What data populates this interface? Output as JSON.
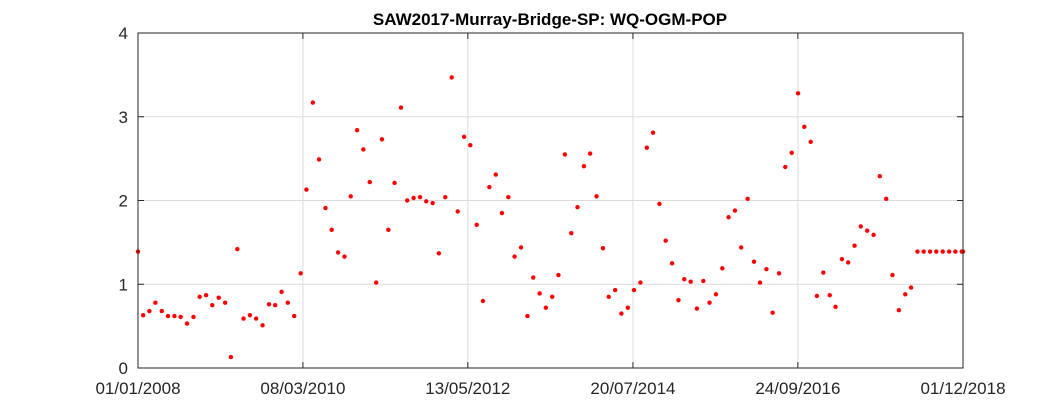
{
  "chart_data": {
    "type": "scatter",
    "title": "SAW2017-Murray-Bridge-SP: WQ-OGM-POP",
    "xlabel": "",
    "ylabel": "",
    "xlim": [
      "2008-01-01",
      "2018-12-01"
    ],
    "ylim": [
      0,
      4
    ],
    "x_ticks": [
      {
        "date": "2008-01-01",
        "label": "01/01/2008"
      },
      {
        "date": "2010-03-08",
        "label": "08/03/2010"
      },
      {
        "date": "2012-05-13",
        "label": "13/05/2012"
      },
      {
        "date": "2014-07-20",
        "label": "20/07/2014"
      },
      {
        "date": "2016-09-24",
        "label": "24/09/2016"
      },
      {
        "date": "2018-12-01",
        "label": "01/12/2018"
      }
    ],
    "y_ticks": [
      {
        "value": 0,
        "label": "0"
      },
      {
        "value": 1,
        "label": "1"
      },
      {
        "value": 2,
        "label": "2"
      },
      {
        "value": 3,
        "label": "3"
      },
      {
        "value": 4,
        "label": "4"
      }
    ],
    "grid": true,
    "legend": "none",
    "marker_color": "#ff0000",
    "series": [
      {
        "points": [
          [
            "2008-01-01",
            1.39
          ],
          [
            "2008-01-26",
            0.63
          ],
          [
            "2008-02-25",
            0.68
          ],
          [
            "2008-03-25",
            0.78
          ],
          [
            "2008-04-25",
            0.68
          ],
          [
            "2008-05-25",
            0.62
          ],
          [
            "2008-06-25",
            0.62
          ],
          [
            "2008-07-25",
            0.61
          ],
          [
            "2008-08-25",
            0.53
          ],
          [
            "2008-09-25",
            0.61
          ],
          [
            "2008-10-25",
            0.85
          ],
          [
            "2008-11-25",
            0.87
          ],
          [
            "2008-12-25",
            0.75
          ],
          [
            "2009-01-25",
            0.84
          ],
          [
            "2009-02-25",
            0.78
          ],
          [
            "2009-03-25",
            0.13
          ],
          [
            "2009-04-25",
            1.42
          ],
          [
            "2009-05-25",
            0.59
          ],
          [
            "2009-06-25",
            0.63
          ],
          [
            "2009-07-25",
            0.59
          ],
          [
            "2009-08-25",
            0.51
          ],
          [
            "2009-09-25",
            0.76
          ],
          [
            "2009-10-25",
            0.75
          ],
          [
            "2009-11-25",
            0.91
          ],
          [
            "2009-12-25",
            0.78
          ],
          [
            "2010-01-25",
            0.62
          ],
          [
            "2010-02-25",
            1.13
          ],
          [
            "2010-03-25",
            2.13
          ],
          [
            "2010-04-25",
            3.17
          ],
          [
            "2010-05-25",
            2.49
          ],
          [
            "2010-06-25",
            1.91
          ],
          [
            "2010-07-25",
            1.65
          ],
          [
            "2010-08-25",
            1.38
          ],
          [
            "2010-09-25",
            1.33
          ],
          [
            "2010-10-25",
            2.05
          ],
          [
            "2010-11-25",
            2.84
          ],
          [
            "2010-12-25",
            2.61
          ],
          [
            "2011-01-25",
            2.22
          ],
          [
            "2011-02-25",
            1.02
          ],
          [
            "2011-03-25",
            2.73
          ],
          [
            "2011-04-25",
            1.65
          ],
          [
            "2011-05-25",
            2.21
          ],
          [
            "2011-06-25",
            3.11
          ],
          [
            "2011-07-25",
            2.0
          ],
          [
            "2011-08-25",
            2.03
          ],
          [
            "2011-09-25",
            2.04
          ],
          [
            "2011-10-25",
            1.99
          ],
          [
            "2011-11-25",
            1.97
          ],
          [
            "2011-12-25",
            1.37
          ],
          [
            "2012-01-25",
            2.04
          ],
          [
            "2012-02-25",
            3.47
          ],
          [
            "2012-03-25",
            1.87
          ],
          [
            "2012-04-25",
            2.76
          ],
          [
            "2012-05-25",
            2.66
          ],
          [
            "2012-06-25",
            1.71
          ],
          [
            "2012-07-25",
            0.8
          ],
          [
            "2012-08-25",
            2.16
          ],
          [
            "2012-09-25",
            2.31
          ],
          [
            "2012-10-25",
            1.85
          ],
          [
            "2012-11-25",
            2.04
          ],
          [
            "2012-12-25",
            1.33
          ],
          [
            "2013-01-25",
            1.44
          ],
          [
            "2013-02-25",
            0.62
          ],
          [
            "2013-03-25",
            1.08
          ],
          [
            "2013-04-25",
            0.89
          ],
          [
            "2013-05-25",
            0.72
          ],
          [
            "2013-06-25",
            0.85
          ],
          [
            "2013-07-25",
            1.11
          ],
          [
            "2013-08-25",
            2.55
          ],
          [
            "2013-09-25",
            1.61
          ],
          [
            "2013-10-25",
            1.92
          ],
          [
            "2013-11-25",
            2.41
          ],
          [
            "2013-12-25",
            2.56
          ],
          [
            "2014-01-25",
            2.05
          ],
          [
            "2014-02-25",
            1.43
          ],
          [
            "2014-03-25",
            0.85
          ],
          [
            "2014-04-25",
            0.93
          ],
          [
            "2014-05-25",
            0.65
          ],
          [
            "2014-06-25",
            0.72
          ],
          [
            "2014-07-25",
            0.93
          ],
          [
            "2014-08-25",
            1.02
          ],
          [
            "2014-09-25",
            2.63
          ],
          [
            "2014-10-25",
            2.81
          ],
          [
            "2014-11-25",
            1.96
          ],
          [
            "2014-12-25",
            1.52
          ],
          [
            "2015-01-25",
            1.25
          ],
          [
            "2015-02-25",
            0.81
          ],
          [
            "2015-03-25",
            1.06
          ],
          [
            "2015-04-25",
            1.03
          ],
          [
            "2015-05-25",
            0.71
          ],
          [
            "2015-06-25",
            1.04
          ],
          [
            "2015-07-25",
            0.78
          ],
          [
            "2015-08-25",
            0.88
          ],
          [
            "2015-09-25",
            1.19
          ],
          [
            "2015-10-25",
            1.8
          ],
          [
            "2015-11-25",
            1.88
          ],
          [
            "2015-12-25",
            1.44
          ],
          [
            "2016-01-25",
            2.02
          ],
          [
            "2016-02-25",
            1.27
          ],
          [
            "2016-03-25",
            1.02
          ],
          [
            "2016-04-25",
            1.18
          ],
          [
            "2016-05-25",
            0.66
          ],
          [
            "2016-06-25",
            1.13
          ],
          [
            "2016-07-25",
            2.4
          ],
          [
            "2016-08-25",
            2.57
          ],
          [
            "2016-09-25",
            3.28
          ],
          [
            "2016-10-25",
            2.88
          ],
          [
            "2016-11-25",
            2.7
          ],
          [
            "2016-12-25",
            0.86
          ],
          [
            "2017-01-25",
            1.14
          ],
          [
            "2017-02-25",
            0.87
          ],
          [
            "2017-03-25",
            0.73
          ],
          [
            "2017-04-25",
            1.3
          ],
          [
            "2017-05-25",
            1.26
          ],
          [
            "2017-06-25",
            1.46
          ],
          [
            "2017-07-25",
            1.69
          ],
          [
            "2017-08-25",
            1.64
          ],
          [
            "2017-09-25",
            1.59
          ],
          [
            "2017-10-25",
            2.29
          ],
          [
            "2017-11-25",
            2.02
          ],
          [
            "2017-12-25",
            1.11
          ],
          [
            "2018-01-25",
            0.69
          ],
          [
            "2018-02-25",
            0.88
          ],
          [
            "2018-03-25",
            0.96
          ],
          [
            "2018-04-25",
            1.39
          ],
          [
            "2018-05-25",
            1.39
          ],
          [
            "2018-06-25",
            1.39
          ],
          [
            "2018-07-25",
            1.39
          ],
          [
            "2018-08-25",
            1.39
          ],
          [
            "2018-09-25",
            1.39
          ],
          [
            "2018-10-25",
            1.39
          ],
          [
            "2018-11-25",
            1.39
          ],
          [
            "2018-12-01",
            1.39
          ]
        ]
      }
    ]
  }
}
